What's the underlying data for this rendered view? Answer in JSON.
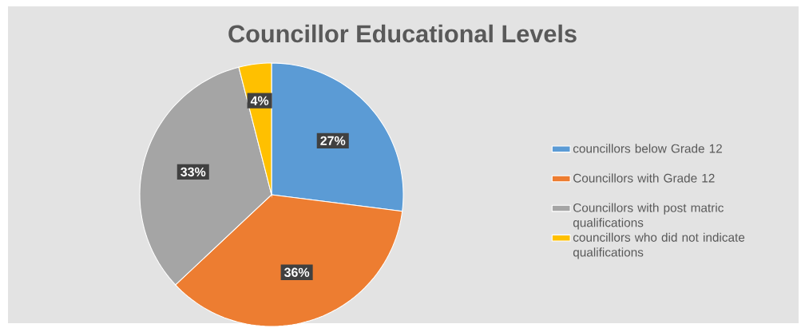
{
  "chart_data": {
    "type": "pie",
    "title": "Councillor  Educational Levels",
    "categories": [
      "councillors below Grade 12",
      "Councillors with Grade 12",
      "Councillors with post matric qualifications",
      "councillors who did not indicate qualifications"
    ],
    "values": [
      27,
      36,
      33,
      4
    ],
    "value_labels": [
      "27%",
      "36%",
      "33%",
      "4%"
    ],
    "colors": [
      "#5b9bd5",
      "#ed7d31",
      "#a5a5a5",
      "#ffc000"
    ],
    "legend": "right"
  }
}
